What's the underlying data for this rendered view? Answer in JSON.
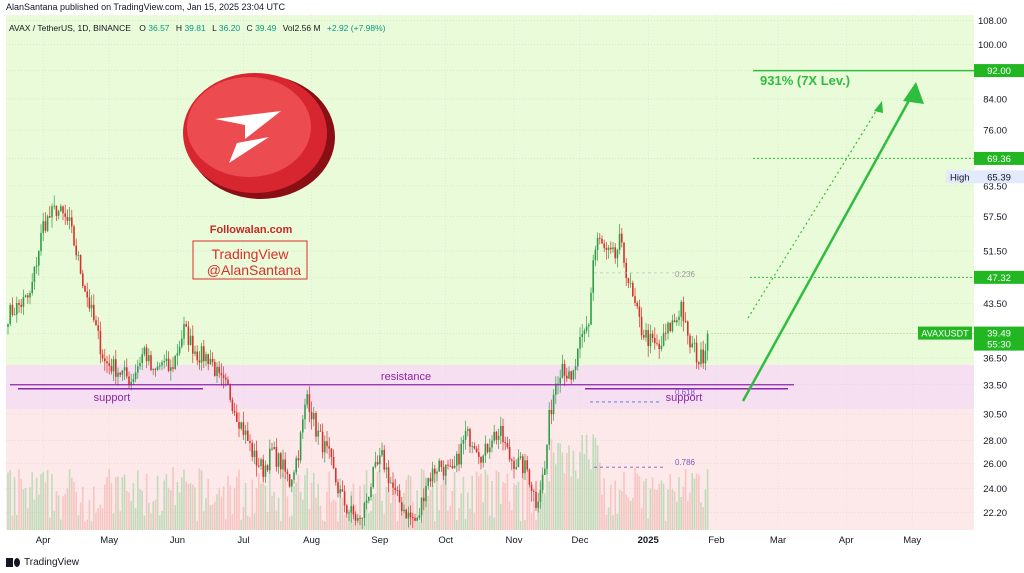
{
  "header": {
    "published": "AlanSantana published on TradingView.com, Jan 15, 2025 23:04 UTC"
  },
  "legend": {
    "symbol_line": "AVAX / TetherUS, 1D, BINANCE",
    "open_label": "O",
    "open": "36.57",
    "high_label": "H",
    "high": "39.81",
    "low_label": "L",
    "low": "36.20",
    "close_label": "C",
    "close": "39.49",
    "vol": "Vol2.56 M",
    "change": "+2.92 (+7.98%)"
  },
  "footer": {
    "brand": "TradingView"
  },
  "annotations": {
    "site": "Followalan.com",
    "watermark_line1": "TradingView",
    "watermark_line2": "@AlanSantana",
    "target_text": "931% (7X Lev.)",
    "resistance": "resistance",
    "support_left": "support",
    "support_right": "support",
    "fib_0236": "0.236",
    "fib_0618": "0.618",
    "fib_0786": "0.786"
  },
  "price_tags": {
    "target": "92.00",
    "level_6936": "69.36",
    "high_label": "High",
    "high_value": "65.39",
    "level_4732": "47.32",
    "symbol_tag": "AVAXUSDT",
    "last_price": "39.49",
    "countdown": "55:30"
  },
  "colors": {
    "upper_zone": "#eafbd9",
    "lower_zone": "#fde9e9",
    "support_band": "#f5dff0",
    "bull": "#2e9d49",
    "bear": "#d9302c",
    "green_line": "#2ebd3e",
    "purple": "#8e24aa",
    "tag_green": "#22b722"
  },
  "chart_data": {
    "type": "candlestick",
    "symbol": "AVAX / TetherUS",
    "interval": "1D",
    "exchange": "BINANCE",
    "y_axis": {
      "scale": "log",
      "ticks": [
        "108.00",
        "100.00",
        "92.00",
        "84.00",
        "76.00",
        "69.36",
        "63.50",
        "57.50",
        "51.50",
        "47.32",
        "43.50",
        "39.49",
        "36.50",
        "33.50",
        "30.50",
        "28.00",
        "26.00",
        "24.00",
        "22.20"
      ],
      "range": [
        21.0,
        110.0
      ]
    },
    "x_axis": {
      "ticks": [
        "Apr",
        "May",
        "Jun",
        "Jul",
        "Aug",
        "Sep",
        "Oct",
        "Nov",
        "Dec",
        "2025",
        "Feb",
        "Mar",
        "Apr",
        "May"
      ],
      "tick_days": [
        16,
        46,
        77,
        107,
        138,
        169,
        199,
        230,
        260,
        291,
        322,
        350,
        381,
        411
      ]
    },
    "days_plotted": 290,
    "anchors": [
      [
        0,
        42.0
      ],
      [
        10,
        44.5
      ],
      [
        16,
        56.0
      ],
      [
        22,
        59.0
      ],
      [
        28,
        56.0
      ],
      [
        34,
        47.0
      ],
      [
        40,
        40.0
      ],
      [
        44,
        36.0
      ],
      [
        48,
        35.5
      ],
      [
        56,
        34.0
      ],
      [
        62,
        37.5
      ],
      [
        66,
        34.5
      ],
      [
        70,
        36.0
      ],
      [
        74,
        35.0
      ],
      [
        80,
        40.0
      ],
      [
        86,
        37.0
      ],
      [
        92,
        36.5
      ],
      [
        96,
        34.0
      ],
      [
        100,
        33.0
      ],
      [
        104,
        30.5
      ],
      [
        108,
        28.5
      ],
      [
        112,
        26.5
      ],
      [
        116,
        25.5
      ],
      [
        120,
        27.0
      ],
      [
        124,
        26.0
      ],
      [
        128,
        24.5
      ],
      [
        132,
        27.0
      ],
      [
        136,
        32.5
      ],
      [
        140,
        29.0
      ],
      [
        146,
        26.5
      ],
      [
        150,
        24.0
      ],
      [
        154,
        22.5
      ],
      [
        160,
        21.5
      ],
      [
        166,
        25.0
      ],
      [
        170,
        26.5
      ],
      [
        176,
        23.5
      ],
      [
        182,
        22.0
      ],
      [
        186,
        21.5
      ],
      [
        190,
        24.5
      ],
      [
        196,
        26.0
      ],
      [
        202,
        25.0
      ],
      [
        208,
        28.5
      ],
      [
        212,
        28.0
      ],
      [
        216,
        26.5
      ],
      [
        220,
        28.5
      ],
      [
        224,
        28.5
      ],
      [
        228,
        26.5
      ],
      [
        232,
        26.0
      ],
      [
        236,
        25.5
      ],
      [
        240,
        23.0
      ],
      [
        244,
        25.5
      ],
      [
        246,
        30.0
      ],
      [
        249,
        34.0
      ],
      [
        252,
        36.0
      ],
      [
        256,
        33.5
      ],
      [
        260,
        38.0
      ],
      [
        264,
        41.0
      ],
      [
        266,
        50.0
      ],
      [
        268,
        53.5
      ],
      [
        272,
        51.0
      ],
      [
        276,
        50.5
      ],
      [
        278,
        53.0
      ],
      [
        280,
        50.0
      ],
      [
        284,
        44.0
      ],
      [
        288,
        40.0
      ],
      [
        292,
        38.5
      ],
      [
        296,
        37.5
      ],
      [
        300,
        40.0
      ],
      [
        304,
        41.5
      ],
      [
        306,
        43.5
      ],
      [
        309,
        38.5
      ],
      [
        312,
        37.5
      ],
      [
        314,
        36.2
      ],
      [
        316,
        37.0
      ],
      [
        318,
        39.49
      ]
    ],
    "levels": {
      "target": 92.0,
      "level_6936": 69.36,
      "high": 65.39,
      "level_4732": 47.32,
      "last": 39.49,
      "resistance": 33.5,
      "support_band_top": 35.7,
      "support_band_bottom": 31.0,
      "fib_0236": 48.0,
      "fib_0618": 31.7,
      "fib_0786": 25.7
    }
  }
}
